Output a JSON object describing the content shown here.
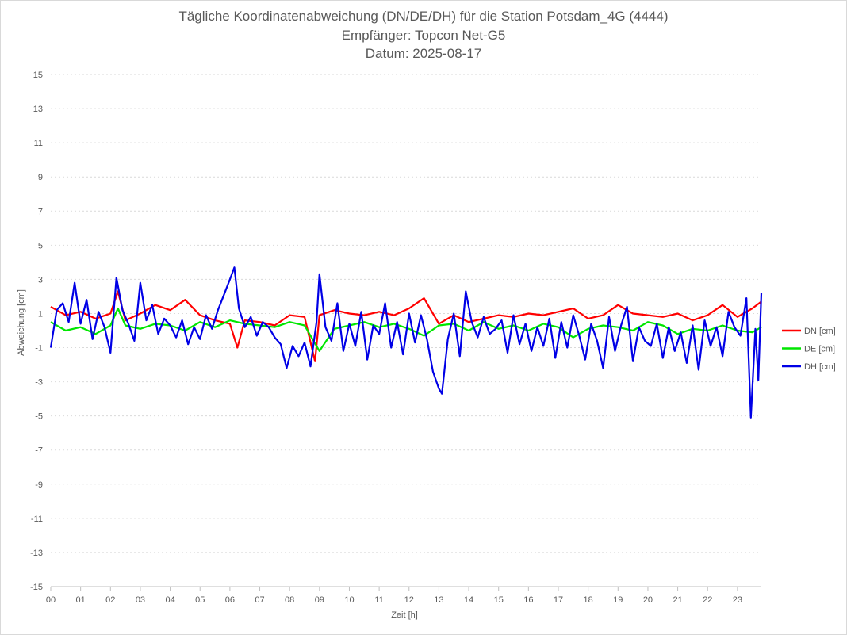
{
  "chart_data": {
    "type": "line",
    "title": [
      "Tägliche Koordinatenabweichung (DN/DE/DH) für die Station Potsdam_4G (4444)",
      "Empfänger: Topcon Net-G5",
      "Datum: 2025-08-17"
    ],
    "xlabel": "Zeit [h]",
    "ylabel": "Abweichung [cm]",
    "xlim": [
      0,
      23.8
    ],
    "ylim": [
      -15,
      15
    ],
    "x_tick_labels": [
      "00",
      "01",
      "02",
      "03",
      "04",
      "05",
      "06",
      "07",
      "08",
      "09",
      "10",
      "11",
      "12",
      "13",
      "14",
      "15",
      "16",
      "17",
      "18",
      "19",
      "20",
      "21",
      "22",
      "23"
    ],
    "y_ticks": [
      15,
      13,
      11,
      9,
      7,
      5,
      3,
      1,
      -1,
      -3,
      -5,
      -7,
      -9,
      -11,
      -13,
      -15
    ],
    "grid": "horizontal dotted",
    "legend_position": "right",
    "series": [
      {
        "name": "DN [cm]",
        "color": "#ff0000",
        "x": [
          0.0,
          0.5,
          1.0,
          1.5,
          2.0,
          2.25,
          2.5,
          3.0,
          3.5,
          4.0,
          4.5,
          5.0,
          5.5,
          6.0,
          6.25,
          6.5,
          7.0,
          7.5,
          8.0,
          8.5,
          8.85,
          9.0,
          9.5,
          10.0,
          10.5,
          11.0,
          11.5,
          12.0,
          12.5,
          13.0,
          13.5,
          14.0,
          14.5,
          15.0,
          15.5,
          16.0,
          16.5,
          17.0,
          17.5,
          18.0,
          18.5,
          19.0,
          19.5,
          20.0,
          20.5,
          21.0,
          21.5,
          22.0,
          22.5,
          23.0,
          23.5,
          23.8
        ],
        "y": [
          1.4,
          0.9,
          1.1,
          0.7,
          1.0,
          2.3,
          0.6,
          1.0,
          1.5,
          1.2,
          1.8,
          0.9,
          0.6,
          0.4,
          -1.0,
          0.6,
          0.5,
          0.3,
          0.9,
          0.8,
          -1.8,
          0.9,
          1.2,
          1.0,
          0.9,
          1.1,
          0.9,
          1.3,
          1.9,
          0.4,
          0.9,
          0.5,
          0.7,
          0.9,
          0.8,
          1.0,
          0.9,
          1.1,
          1.3,
          0.7,
          0.9,
          1.5,
          1.0,
          0.9,
          0.8,
          1.0,
          0.6,
          0.9,
          1.5,
          0.8,
          1.3,
          1.7
        ]
      },
      {
        "name": "DE [cm]",
        "color": "#00e600",
        "x": [
          0.0,
          0.5,
          1.0,
          1.5,
          2.0,
          2.25,
          2.5,
          3.0,
          3.5,
          4.0,
          4.5,
          5.0,
          5.5,
          6.0,
          6.5,
          7.0,
          7.5,
          8.0,
          8.5,
          9.0,
          9.5,
          10.0,
          10.5,
          11.0,
          11.5,
          12.0,
          12.5,
          13.0,
          13.5,
          14.0,
          14.5,
          15.0,
          15.5,
          16.0,
          16.5,
          17.0,
          17.5,
          18.0,
          18.5,
          19.0,
          19.5,
          20.0,
          20.5,
          21.0,
          21.5,
          22.0,
          22.5,
          23.0,
          23.5,
          23.8
        ],
        "y": [
          0.5,
          0.0,
          0.2,
          -0.2,
          0.3,
          1.3,
          0.3,
          0.1,
          0.4,
          0.3,
          0.0,
          0.5,
          0.2,
          0.6,
          0.4,
          0.3,
          0.2,
          0.5,
          0.3,
          -1.2,
          0.1,
          0.3,
          0.5,
          0.2,
          0.4,
          0.1,
          -0.3,
          0.3,
          0.4,
          0.0,
          0.5,
          0.1,
          0.3,
          0.0,
          0.4,
          0.2,
          -0.4,
          0.1,
          0.3,
          0.2,
          0.0,
          0.5,
          0.3,
          -0.2,
          0.1,
          0.0,
          0.3,
          0.0,
          -0.1,
          0.2
        ]
      },
      {
        "name": "DH [cm]",
        "color": "#0000e6",
        "x": [
          0.0,
          0.2,
          0.4,
          0.6,
          0.8,
          1.0,
          1.2,
          1.4,
          1.6,
          1.8,
          2.0,
          2.2,
          2.4,
          2.6,
          2.8,
          3.0,
          3.2,
          3.4,
          3.6,
          3.8,
          4.0,
          4.2,
          4.4,
          4.6,
          4.8,
          5.0,
          5.2,
          5.4,
          5.6,
          5.8,
          6.0,
          6.15,
          6.3,
          6.5,
          6.7,
          6.9,
          7.1,
          7.3,
          7.5,
          7.7,
          7.9,
          8.1,
          8.3,
          8.5,
          8.7,
          8.9,
          9.0,
          9.2,
          9.4,
          9.6,
          9.8,
          10.0,
          10.2,
          10.4,
          10.6,
          10.8,
          11.0,
          11.2,
          11.4,
          11.6,
          11.8,
          12.0,
          12.2,
          12.4,
          12.6,
          12.8,
          13.0,
          13.1,
          13.3,
          13.5,
          13.7,
          13.9,
          14.1,
          14.3,
          14.5,
          14.7,
          14.9,
          15.1,
          15.3,
          15.5,
          15.7,
          15.9,
          16.1,
          16.3,
          16.5,
          16.7,
          16.9,
          17.1,
          17.3,
          17.5,
          17.7,
          17.9,
          18.1,
          18.3,
          18.5,
          18.7,
          18.9,
          19.1,
          19.3,
          19.5,
          19.7,
          19.9,
          20.1,
          20.3,
          20.5,
          20.7,
          20.9,
          21.1,
          21.3,
          21.5,
          21.7,
          21.9,
          22.1,
          22.3,
          22.5,
          22.7,
          22.9,
          23.1,
          23.3,
          23.45,
          23.6,
          23.7,
          23.8
        ],
        "y": [
          -1.0,
          1.2,
          1.6,
          0.5,
          2.8,
          0.4,
          1.8,
          -0.5,
          1.1,
          0.2,
          -1.3,
          3.1,
          1.2,
          0.4,
          -0.6,
          2.8,
          0.6,
          1.5,
          -0.2,
          0.7,
          0.3,
          -0.4,
          0.6,
          -0.8,
          0.2,
          -0.5,
          0.9,
          0.1,
          1.2,
          2.1,
          3.0,
          3.7,
          1.3,
          0.2,
          0.8,
          -0.3,
          0.5,
          0.2,
          -0.4,
          -0.8,
          -2.2,
          -0.9,
          -1.5,
          -0.7,
          -2.1,
          0.5,
          3.3,
          0.2,
          -0.6,
          1.6,
          -1.2,
          0.4,
          -0.9,
          1.1,
          -1.7,
          0.3,
          -0.2,
          1.6,
          -1.0,
          0.5,
          -1.4,
          1.0,
          -0.7,
          0.9,
          -0.5,
          -2.4,
          -3.4,
          -3.7,
          -0.5,
          1.0,
          -1.5,
          2.3,
          0.5,
          -0.4,
          0.8,
          -0.2,
          0.1,
          0.6,
          -1.3,
          0.9,
          -0.8,
          0.4,
          -1.2,
          0.2,
          -0.9,
          0.7,
          -1.6,
          0.5,
          -1.0,
          0.9,
          -0.3,
          -1.7,
          0.4,
          -0.6,
          -2.2,
          0.8,
          -1.2,
          0.3,
          1.4,
          -1.8,
          0.2,
          -0.6,
          -0.9,
          0.4,
          -1.6,
          0.2,
          -1.2,
          -0.1,
          -1.9,
          0.3,
          -2.3,
          0.6,
          -0.9,
          0.2,
          -1.5,
          1.1,
          0.2,
          -0.3,
          1.9,
          -5.1,
          0.1,
          -2.9,
          2.2
        ]
      }
    ]
  }
}
